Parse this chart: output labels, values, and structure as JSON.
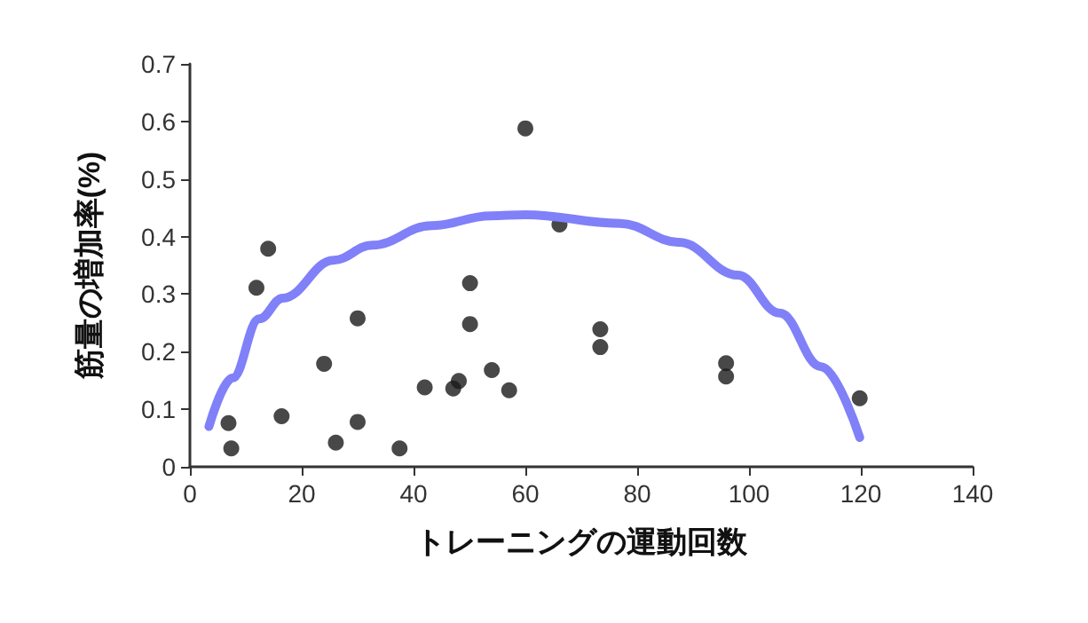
{
  "chart_data": {
    "type": "scatter",
    "xlabel": "トレーニングの運動回数",
    "ylabel": "筋量の増加率(%)",
    "xlim": [
      0,
      140
    ],
    "xticks": [
      0,
      20,
      40,
      60,
      80,
      100,
      120,
      140
    ],
    "ylim": [
      0,
      0.7
    ],
    "yticks": [
      0,
      0.1,
      0.2,
      0.3,
      0.4,
      0.5,
      0.6,
      0.7
    ],
    "grid": false,
    "marker": "circle",
    "series": [
      {
        "color": "#1a1a1a",
        "x": [
          6.9,
          7.4,
          11.9,
          14,
          16.4,
          24,
          26.1,
          30,
          30,
          37.5,
          42,
          47.1,
          48.1,
          50.1,
          50.1,
          54,
          57.1,
          60,
          66.1,
          73.4,
          73.4,
          95.9,
          95.9,
          119.8
        ],
        "values": [
          0.076,
          0.032,
          0.311,
          0.379,
          0.088,
          0.179,
          0.042,
          0.258,
          0.078,
          0.032,
          0.138,
          0.136,
          0.149,
          0.319,
          0.248,
          0.168,
          0.133,
          0.588,
          0.421,
          0.239,
          0.208,
          0.18,
          0.157,
          0.119
        ]
      },
      {
        "type": "line",
        "color": "#8080f8",
        "marker": "none",
        "x": [
          3.4,
          7.6,
          12.4,
          16.6,
          25.7,
          32.6,
          43.2,
          53.8,
          60,
          76.9,
          87.5,
          98,
          105.5,
          112.9,
          119.8
        ],
        "values": [
          0.07,
          0.154,
          0.257,
          0.293,
          0.359,
          0.385,
          0.419,
          0.436,
          0.438,
          0.423,
          0.39,
          0.333,
          0.267,
          0.174,
          0.051
        ]
      }
    ]
  }
}
